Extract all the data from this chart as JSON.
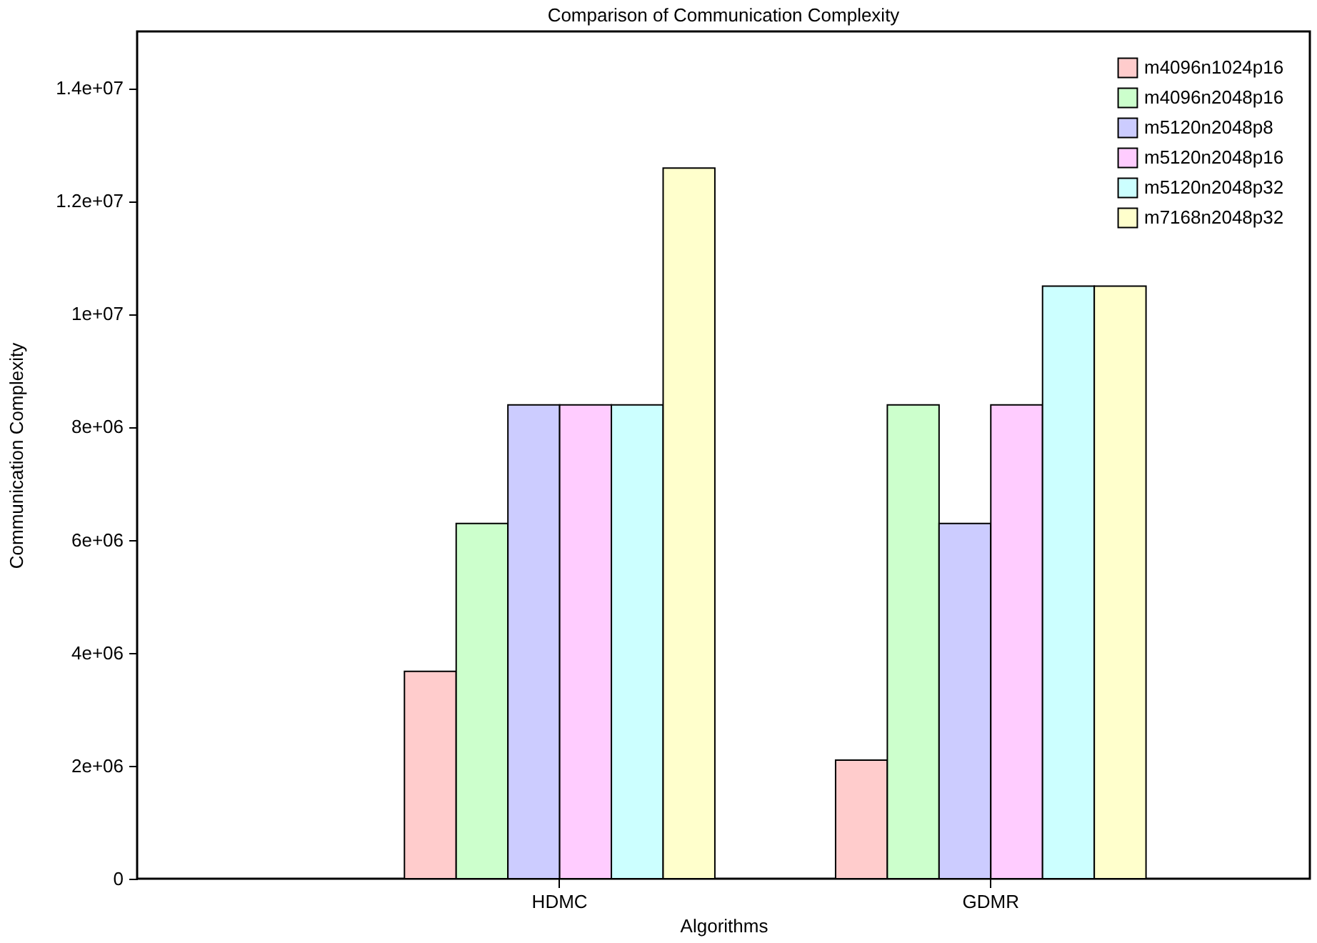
{
  "chart_data": {
    "type": "bar",
    "title": "Comparison of Communication Complexity",
    "xlabel": "Algorithms",
    "ylabel": "Communication Complexity",
    "categories": [
      "HDMC",
      "GDMR"
    ],
    "series": [
      {
        "name": "m4096n1024p16",
        "color": "#ffcccc",
        "values": [
          3670000,
          2100000
        ]
      },
      {
        "name": "m4096n2048p16",
        "color": "#ccffcc",
        "values": [
          6290000,
          8390000
        ]
      },
      {
        "name": "m5120n2048p8",
        "color": "#ccccff",
        "values": [
          8390000,
          6290000
        ]
      },
      {
        "name": "m5120n2048p16",
        "color": "#ffccff",
        "values": [
          8390000,
          8390000
        ]
      },
      {
        "name": "m5120n2048p32",
        "color": "#ccffff",
        "values": [
          8390000,
          10490000
        ]
      },
      {
        "name": "m7168n2048p32",
        "color": "#ffffcc",
        "values": [
          12580000,
          10490000
        ]
      }
    ],
    "ylim": [
      0,
      15000000
    ],
    "yticks": [
      {
        "value": 0,
        "label": "0"
      },
      {
        "value": 2000000,
        "label": "2e+06"
      },
      {
        "value": 4000000,
        "label": "4e+06"
      },
      {
        "value": 6000000,
        "label": "6e+06"
      },
      {
        "value": 8000000,
        "label": "8e+06"
      },
      {
        "value": 10000000,
        "label": "1e+07"
      },
      {
        "value": 12000000,
        "label": "1.2e+07"
      },
      {
        "value": 14000000,
        "label": "1.4e+07"
      }
    ],
    "grid": false,
    "legend": "top right"
  }
}
